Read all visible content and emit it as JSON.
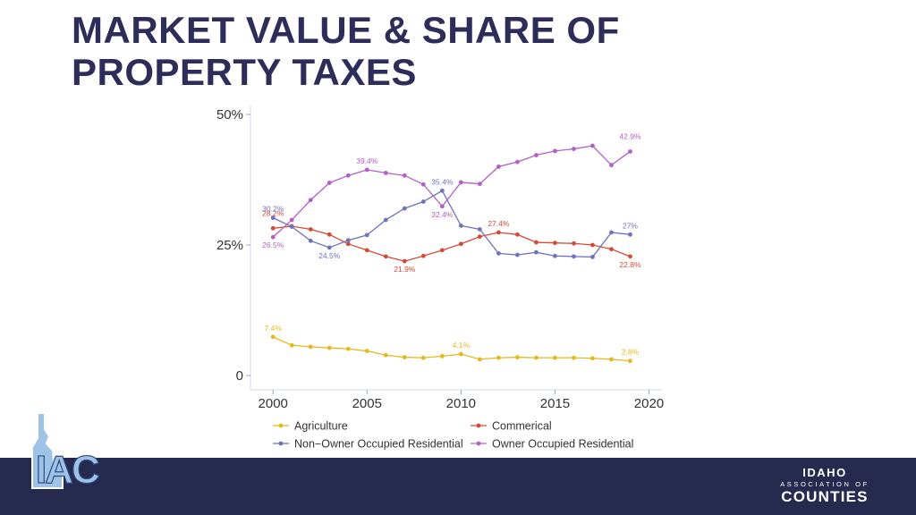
{
  "slide": {
    "title_line1": "MARKET VALUE & SHARE OF",
    "title_line2": "PROPERTY TAXES"
  },
  "footer": {
    "logo_text": "IAC",
    "org_line1": "IDAHO",
    "org_line2": "ASSOCIATION OF",
    "org_line3": "COUNTIES",
    "logo_icon": "idaho-state-outline-icon"
  },
  "colors": {
    "title": "#2e2d5a",
    "footer_bg": "#272a4f",
    "agriculture": "#e6b81e",
    "commercial": "#d64a35",
    "non_owner": "#6f72bd",
    "owner": "#b35ec9"
  },
  "chart_data": {
    "type": "line",
    "title": "",
    "xlabel": "",
    "ylabel": "",
    "xlim": [
      1998.8,
      2020.5
    ],
    "ylim": [
      0,
      50
    ],
    "x_ticks": [
      2000,
      2005,
      2010,
      2015,
      2020
    ],
    "x_tick_labels": [
      "2000",
      "2005",
      "2010",
      "2015",
      "2020"
    ],
    "y_ticks": [
      0,
      25,
      50
    ],
    "y_tick_labels": [
      "0",
      "25%",
      "50%"
    ],
    "grid": false,
    "legend_position": "bottom",
    "x": [
      2000,
      2001,
      2002,
      2003,
      2004,
      2005,
      2006,
      2007,
      2008,
      2009,
      2010,
      2011,
      2012,
      2013,
      2014,
      2015,
      2016,
      2017,
      2018,
      2019
    ],
    "series": [
      {
        "key": "agriculture",
        "name": "Agriculture",
        "color": "#e6b81e",
        "values": [
          7.4,
          5.8,
          5.5,
          5.3,
          5.1,
          4.7,
          3.9,
          3.5,
          3.4,
          3.7,
          4.1,
          3.1,
          3.4,
          3.5,
          3.4,
          3.4,
          3.4,
          3.3,
          3.1,
          2.8
        ],
        "labels": [
          {
            "x": 2000,
            "y": 7.4,
            "text": "7.4%",
            "pos": "above"
          },
          {
            "x": 2010,
            "y": 4.1,
            "text": "4.1%",
            "pos": "above"
          },
          {
            "x": 2019,
            "y": 2.8,
            "text": "2.8%",
            "pos": "above"
          }
        ]
      },
      {
        "key": "commercial",
        "name": "Commerical",
        "color": "#d64a35",
        "values": [
          28.2,
          28.6,
          28.0,
          27.0,
          25.2,
          24.0,
          22.8,
          21.9,
          22.9,
          24.0,
          25.2,
          26.6,
          27.4,
          27.0,
          25.5,
          25.4,
          25.3,
          25.0,
          24.2,
          22.8
        ],
        "labels": [
          {
            "x": 2000,
            "y": 28.2,
            "text": "28.2%",
            "pos": "above-high"
          },
          {
            "x": 2007,
            "y": 21.9,
            "text": "21.9%",
            "pos": "below"
          },
          {
            "x": 2012,
            "y": 27.4,
            "text": "27.4%",
            "pos": "above"
          },
          {
            "x": 2019,
            "y": 22.8,
            "text": "22.8%",
            "pos": "below"
          }
        ]
      },
      {
        "key": "non_owner",
        "name": "Non−Owner Occupied Residential",
        "color": "#6f72bd",
        "values": [
          30.2,
          28.5,
          25.8,
          24.5,
          25.9,
          26.9,
          29.8,
          32.0,
          33.3,
          35.4,
          28.7,
          28.0,
          23.4,
          23.1,
          23.6,
          22.9,
          22.8,
          22.7,
          27.4,
          27.0
        ],
        "labels": [
          {
            "x": 2000,
            "y": 30.2,
            "text": "30.2%",
            "pos": "above"
          },
          {
            "x": 2003,
            "y": 24.5,
            "text": "24.5%",
            "pos": "below"
          },
          {
            "x": 2009,
            "y": 35.4,
            "text": "35.4%",
            "pos": "above"
          },
          {
            "x": 2019,
            "y": 27.0,
            "text": "27%",
            "pos": "above"
          }
        ]
      },
      {
        "key": "owner",
        "name": "Owner Occupied Residential",
        "color": "#b35ec9",
        "values": [
          26.5,
          29.8,
          33.6,
          36.9,
          38.3,
          39.4,
          38.8,
          38.3,
          36.6,
          32.4,
          37.0,
          36.7,
          40.0,
          40.9,
          42.2,
          43.0,
          43.4,
          44.0,
          40.3,
          42.9
        ],
        "labels": [
          {
            "x": 2000,
            "y": 26.5,
            "text": "26.5%",
            "pos": "below"
          },
          {
            "x": 2005,
            "y": 39.4,
            "text": "39.4%",
            "pos": "above"
          },
          {
            "x": 2009,
            "y": 32.4,
            "text": "32.4%",
            "pos": "below"
          },
          {
            "x": 2019,
            "y": 42.9,
            "text": "42.9%",
            "pos": "above-high"
          }
        ]
      }
    ]
  }
}
